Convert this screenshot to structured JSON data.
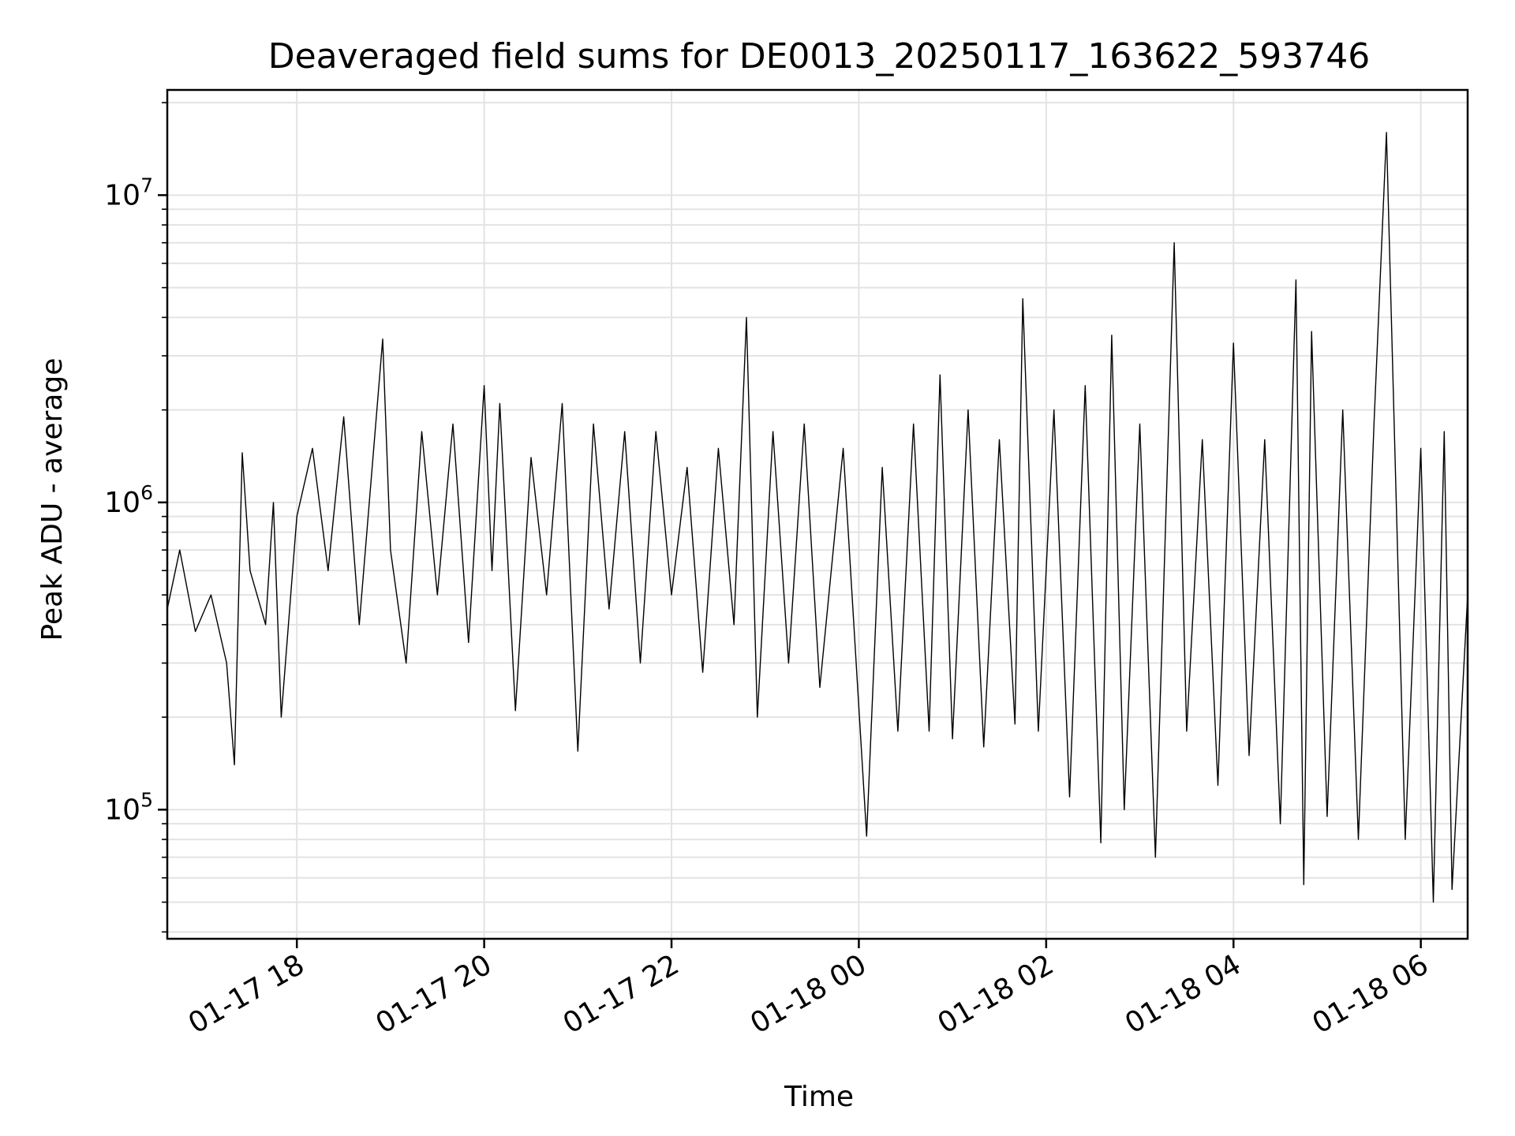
{
  "chart_data": {
    "type": "line",
    "title": "Deaveraged field sums for DE0013_20250117_163622_593746",
    "xlabel": "Time",
    "ylabel": "Peak ADU - average",
    "yscale": "log",
    "xlim": [
      "2025-01-17 16:37",
      "2025-01-18 06:30"
    ],
    "ylim": [
      38000,
      22000000
    ],
    "grid": true,
    "line_color": "#000000",
    "x_ticks": [
      {
        "value": "2025-01-17 18:00",
        "label": "01-17 18"
      },
      {
        "value": "2025-01-17 20:00",
        "label": "01-17 20"
      },
      {
        "value": "2025-01-17 22:00",
        "label": "01-17 22"
      },
      {
        "value": "2025-01-18 00:00",
        "label": "01-18 00"
      },
      {
        "value": "2025-01-18 02:00",
        "label": "01-18 02"
      },
      {
        "value": "2025-01-18 04:00",
        "label": "01-18 04"
      },
      {
        "value": "2025-01-18 06:00",
        "label": "01-18 06"
      }
    ],
    "y_ticks": [
      {
        "value": 100000,
        "base": "10",
        "exp": "5"
      },
      {
        "value": 1000000,
        "base": "10",
        "exp": "6"
      },
      {
        "value": 10000000,
        "base": "10",
        "exp": "7"
      }
    ],
    "series": [
      {
        "points": [
          [
            "2025-01-17 16:37",
            450000
          ],
          [
            "2025-01-17 16:45",
            700000
          ],
          [
            "2025-01-17 16:55",
            380000
          ],
          [
            "2025-01-17 17:05",
            500000
          ],
          [
            "2025-01-17 17:15",
            300000
          ],
          [
            "2025-01-17 17:20",
            140000
          ],
          [
            "2025-01-17 17:25",
            1450000
          ],
          [
            "2025-01-17 17:30",
            600000
          ],
          [
            "2025-01-17 17:40",
            400000
          ],
          [
            "2025-01-17 17:45",
            1000000
          ],
          [
            "2025-01-17 17:50",
            200000
          ],
          [
            "2025-01-17 18:00",
            900000
          ],
          [
            "2025-01-17 18:10",
            1500000
          ],
          [
            "2025-01-17 18:20",
            600000
          ],
          [
            "2025-01-17 18:30",
            1900000
          ],
          [
            "2025-01-17 18:40",
            400000
          ],
          [
            "2025-01-17 18:55",
            3400000
          ],
          [
            "2025-01-17 19:00",
            700000
          ],
          [
            "2025-01-17 19:10",
            300000
          ],
          [
            "2025-01-17 19:20",
            1700000
          ],
          [
            "2025-01-17 19:30",
            500000
          ],
          [
            "2025-01-17 19:40",
            1800000
          ],
          [
            "2025-01-17 19:50",
            350000
          ],
          [
            "2025-01-17 20:00",
            2400000
          ],
          [
            "2025-01-17 20:05",
            600000
          ],
          [
            "2025-01-17 20:10",
            2100000
          ],
          [
            "2025-01-17 20:20",
            210000
          ],
          [
            "2025-01-17 20:30",
            1400000
          ],
          [
            "2025-01-17 20:40",
            500000
          ],
          [
            "2025-01-17 20:50",
            2100000
          ],
          [
            "2025-01-17 21:00",
            155000
          ],
          [
            "2025-01-17 21:10",
            1800000
          ],
          [
            "2025-01-17 21:20",
            450000
          ],
          [
            "2025-01-17 21:30",
            1700000
          ],
          [
            "2025-01-17 21:40",
            300000
          ],
          [
            "2025-01-17 21:50",
            1700000
          ],
          [
            "2025-01-17 22:00",
            500000
          ],
          [
            "2025-01-17 22:10",
            1300000
          ],
          [
            "2025-01-17 22:20",
            280000
          ],
          [
            "2025-01-17 22:30",
            1500000
          ],
          [
            "2025-01-17 22:40",
            400000
          ],
          [
            "2025-01-17 22:48",
            4000000
          ],
          [
            "2025-01-17 22:55",
            200000
          ],
          [
            "2025-01-17 23:05",
            1700000
          ],
          [
            "2025-01-17 23:15",
            300000
          ],
          [
            "2025-01-17 23:25",
            1800000
          ],
          [
            "2025-01-17 23:35",
            250000
          ],
          [
            "2025-01-17 23:50",
            1500000
          ],
          [
            "2025-01-18 00:05",
            82000
          ],
          [
            "2025-01-18 00:15",
            1300000
          ],
          [
            "2025-01-18 00:25",
            180000
          ],
          [
            "2025-01-18 00:35",
            1800000
          ],
          [
            "2025-01-18 00:45",
            180000
          ],
          [
            "2025-01-18 00:52",
            2600000
          ],
          [
            "2025-01-18 01:00",
            170000
          ],
          [
            "2025-01-18 01:10",
            2000000
          ],
          [
            "2025-01-18 01:20",
            160000
          ],
          [
            "2025-01-18 01:30",
            1600000
          ],
          [
            "2025-01-18 01:40",
            190000
          ],
          [
            "2025-01-18 01:45",
            4600000
          ],
          [
            "2025-01-18 01:55",
            180000
          ],
          [
            "2025-01-18 02:05",
            2000000
          ],
          [
            "2025-01-18 02:15",
            110000
          ],
          [
            "2025-01-18 02:25",
            2400000
          ],
          [
            "2025-01-18 02:35",
            78000
          ],
          [
            "2025-01-18 02:42",
            3500000
          ],
          [
            "2025-01-18 02:50",
            100000
          ],
          [
            "2025-01-18 03:00",
            1800000
          ],
          [
            "2025-01-18 03:10",
            70000
          ],
          [
            "2025-01-18 03:22",
            7000000
          ],
          [
            "2025-01-18 03:30",
            180000
          ],
          [
            "2025-01-18 03:40",
            1600000
          ],
          [
            "2025-01-18 03:50",
            120000
          ],
          [
            "2025-01-18 04:00",
            3300000
          ],
          [
            "2025-01-18 04:10",
            150000
          ],
          [
            "2025-01-18 04:20",
            1600000
          ],
          [
            "2025-01-18 04:30",
            90000
          ],
          [
            "2025-01-18 04:40",
            5300000
          ],
          [
            "2025-01-18 04:45",
            57000
          ],
          [
            "2025-01-18 04:50",
            3600000
          ],
          [
            "2025-01-18 05:00",
            95000
          ],
          [
            "2025-01-18 05:10",
            2000000
          ],
          [
            "2025-01-18 05:20",
            80000
          ],
          [
            "2025-01-18 05:30",
            1800000
          ],
          [
            "2025-01-18 05:38",
            16000000
          ],
          [
            "2025-01-18 05:40",
            6500000
          ],
          [
            "2025-01-18 05:50",
            80000
          ],
          [
            "2025-01-18 06:00",
            1500000
          ],
          [
            "2025-01-18 06:08",
            50000
          ],
          [
            "2025-01-18 06:15",
            1700000
          ],
          [
            "2025-01-18 06:20",
            55000
          ],
          [
            "2025-01-18 06:30",
            500000
          ]
        ]
      }
    ]
  }
}
